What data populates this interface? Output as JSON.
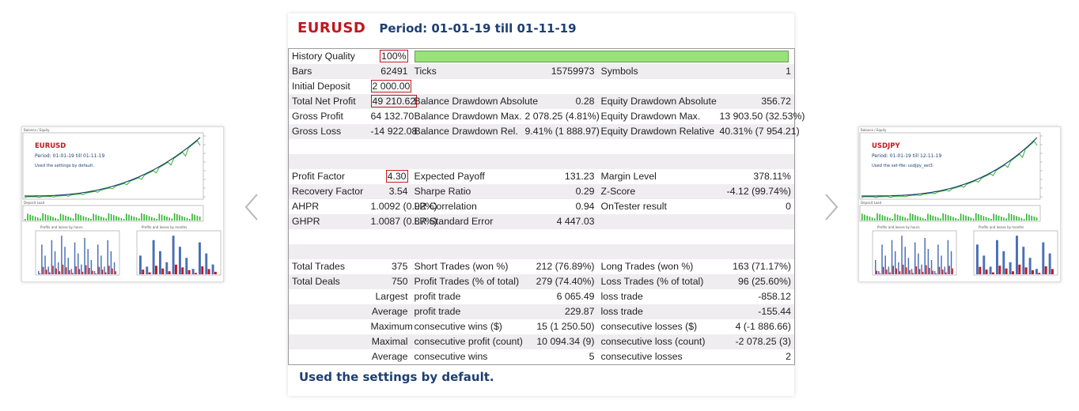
{
  "thumbnails": [
    {
      "symbol": "EURUSD",
      "period": "Period: 01-01-19 till 01-11-19",
      "note": "Used the settings by default.",
      "chart_title": "Balance / Equity",
      "load_title": "Deposit Load",
      "hours_title": "Profits and losses by hours",
      "months_title": "Profits and losses by months"
    },
    {
      "symbol": "USDJPY",
      "period": "Period: 01-01-19 till 12-11-19",
      "note": "Used the set-file: usdjpy_set3.",
      "chart_title": "Balance / Equity",
      "load_title": "Deposit Load",
      "hours_title": "Profits and losses by hours",
      "months_title": "Profits and losses by months"
    }
  ],
  "report": {
    "symbol": "EURUSD",
    "period": "Period: 01-01-19 till 01-11-19",
    "rows": [
      [
        "History Quality",
        {
          "text": "100%",
          "boxed": true
        },
        null,
        null,
        null,
        null
      ],
      [
        "Bars",
        "62491",
        "Ticks",
        "15759973",
        "Symbols",
        "1"
      ],
      [
        "Initial Deposit",
        {
          "text": "2 000.00",
          "boxed": true
        },
        null,
        null,
        null,
        null
      ],
      [
        "Total Net Profit",
        {
          "text": "49 210.62",
          "boxed": true
        },
        "Balance Drawdown Absolute",
        "0.28",
        "Equity Drawdown Absolute",
        "356.72"
      ],
      [
        "Gross Profit",
        "64 132.70",
        "Balance Drawdown Max.",
        "2 078.25 (4.81%)",
        "Equity Drawdown Max.",
        "13 903.50 (32.53%)"
      ],
      [
        "Gross Loss",
        "-14 922.08",
        "Balance Drawdown Rel.",
        "9.41% (1 888.97)",
        "Equity Drawdown Relative",
        "40.31% (7 954.21)"
      ],
      [
        null,
        null,
        null,
        null,
        null,
        null
      ],
      [
        null,
        null,
        null,
        null,
        null,
        null
      ],
      [
        "Profit Factor",
        {
          "text": "4.30",
          "boxed": true
        },
        "Expected Payoff",
        "131.23",
        "Margin Level",
        "378.11%"
      ],
      [
        "Recovery Factor",
        "3.54",
        "Sharpe Ratio",
        "0.29",
        "Z-Score",
        "-4.12 (99.74%)"
      ],
      [
        "AHPR",
        "1.0092 (0.92%)",
        "LR Correlation",
        "0.94",
        "OnTester result",
        "0"
      ],
      [
        "GHPR",
        "1.0087 (0.87%)",
        "LR Standard Error",
        "4 447.03",
        null,
        null
      ],
      [
        null,
        null,
        null,
        null,
        null,
        null
      ],
      [
        null,
        null,
        null,
        null,
        null,
        null
      ],
      [
        "Total Trades",
        "375",
        "Short Trades (won %)",
        "212 (76.89%)",
        "Long Trades (won %)",
        "163 (71.17%)"
      ],
      [
        "Total Deals",
        "750",
        "Profit Trades (% of total)",
        "279 (74.40%)",
        "Loss Trades (% of total)",
        "96 (25.60%)"
      ],
      [
        null,
        "Largest",
        "profit trade",
        "6 065.49",
        "loss trade",
        "-858.12"
      ],
      [
        null,
        "Average",
        "profit trade",
        "229.87",
        "loss trade",
        "-155.44"
      ],
      [
        null,
        "Maximum",
        "consecutive wins ($)",
        "15 (1 250.50)",
        "consecutive losses ($)",
        "4 (-1 886.66)"
      ],
      [
        null,
        "Maximal",
        "consecutive profit (count)",
        "10 094.34 (9)",
        "consecutive loss (count)",
        "-2 078.25 (3)"
      ],
      [
        null,
        "Average",
        "consecutive wins",
        "5",
        "consecutive losses",
        "2"
      ]
    ],
    "note": "Used the settings by default."
  }
}
